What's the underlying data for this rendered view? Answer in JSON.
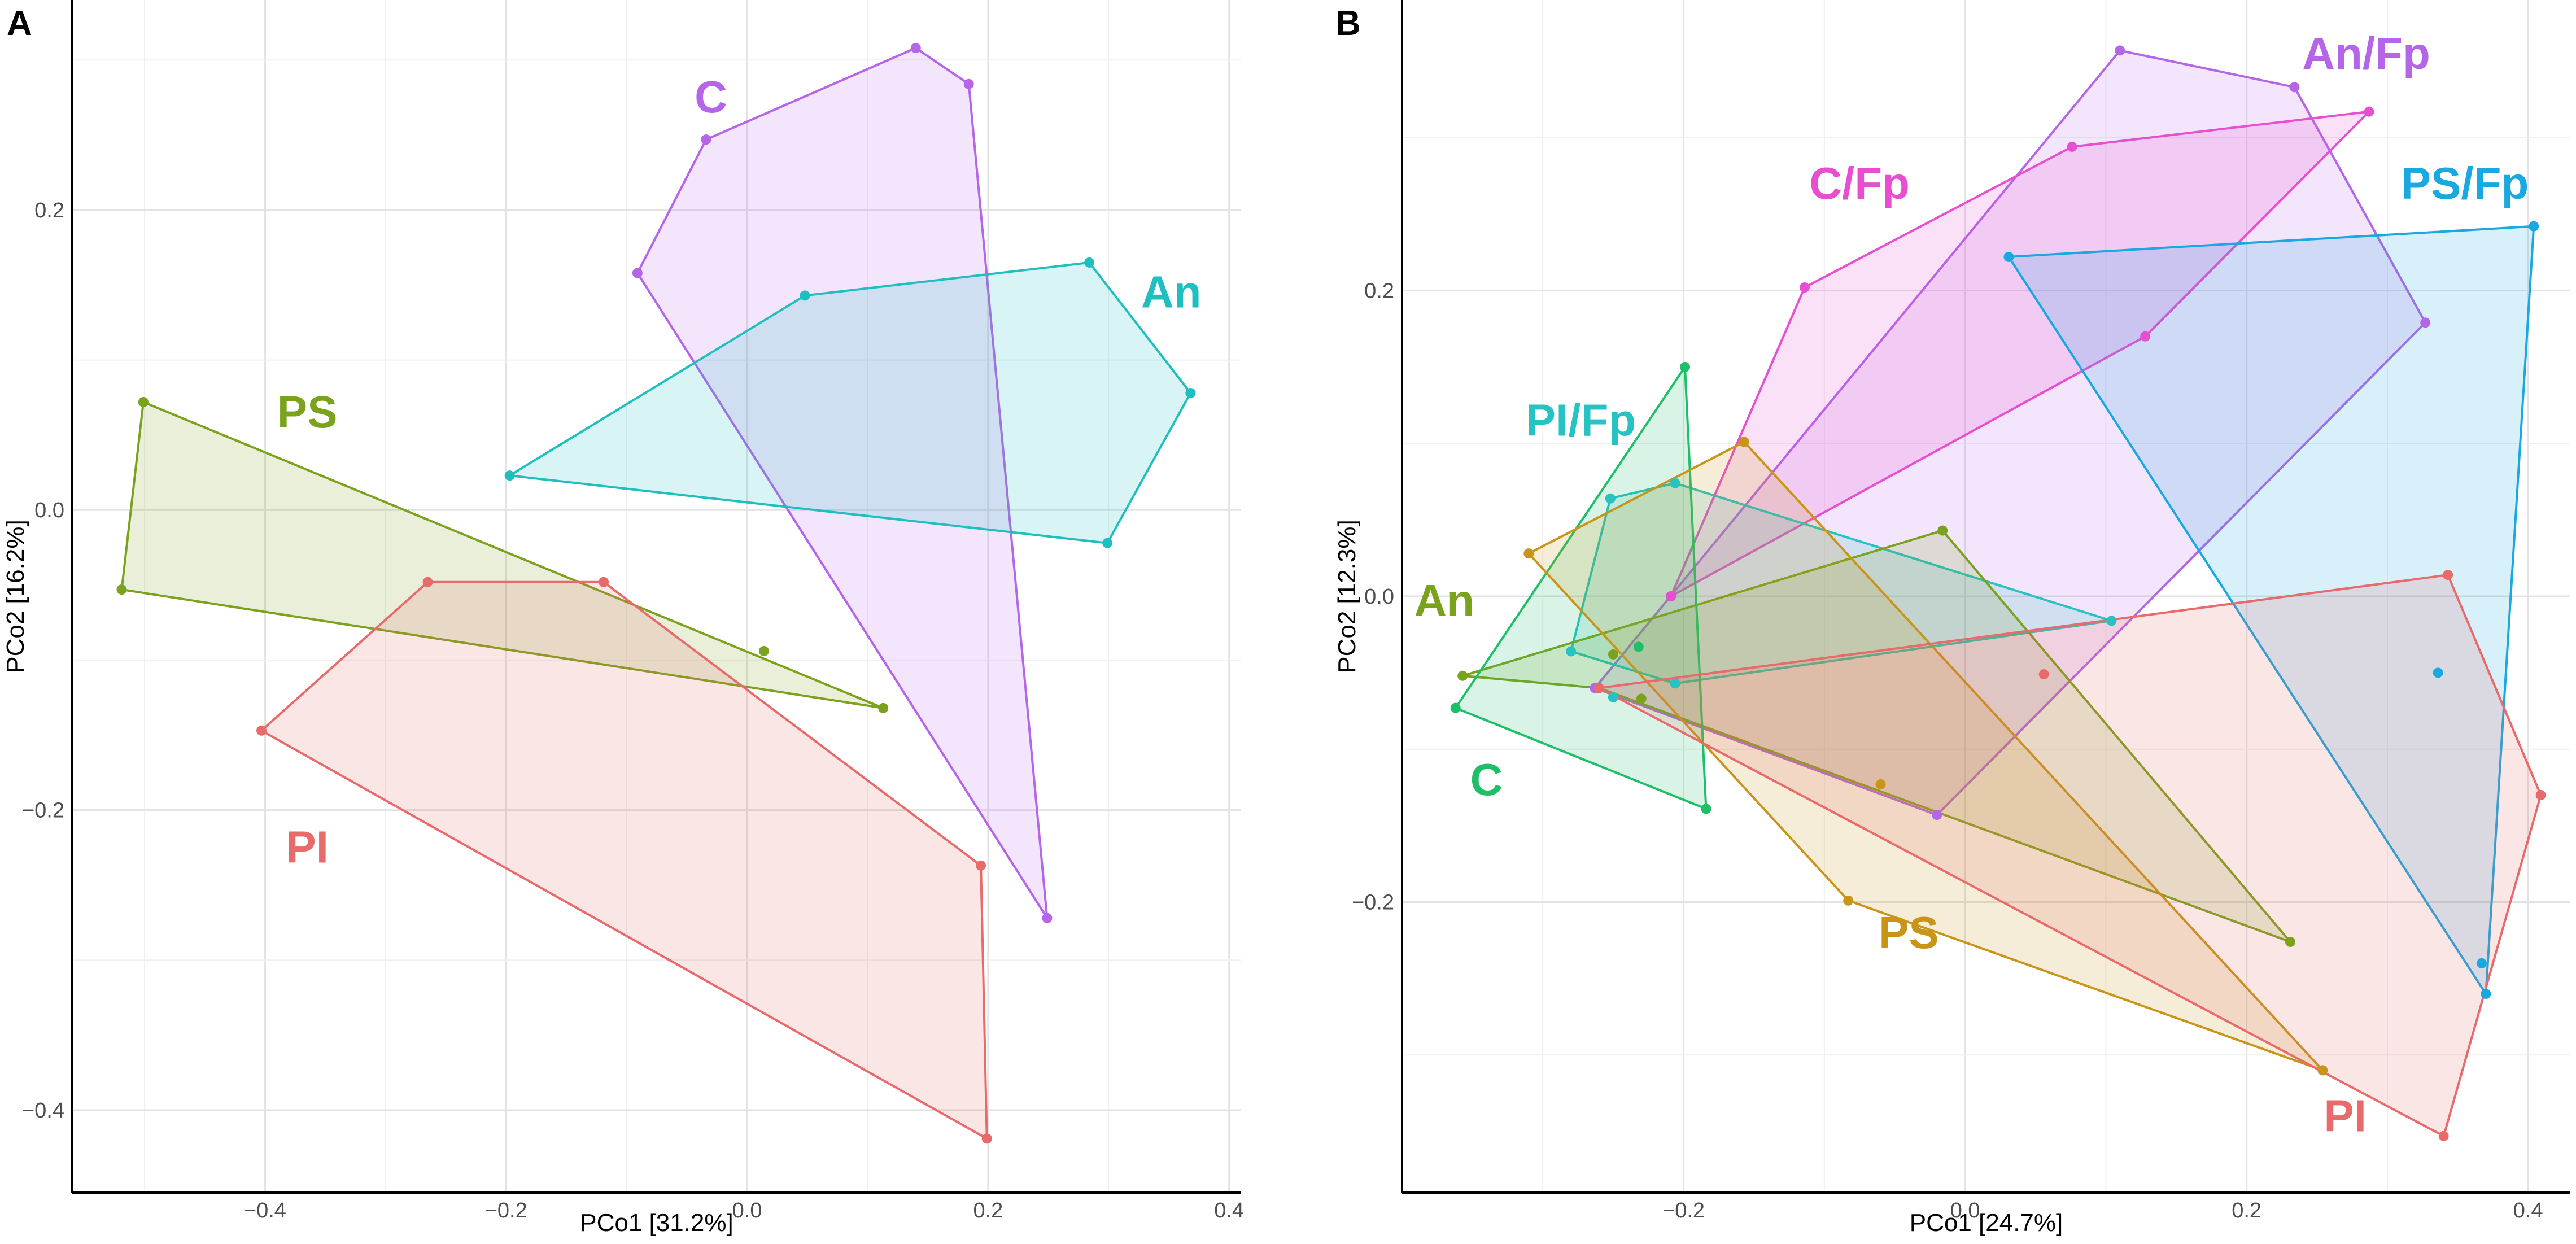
{
  "colors": {
    "C": "#b565e8",
    "An": "#1fbfbf",
    "PS": "#7ba21c",
    "PI": "#e86a6a",
    "C/Fp": "#e84fd0",
    "An/Fp": "#b565e8",
    "PS/Fp": "#1aa8e0",
    "PI/Fp": "#27c2c2",
    "C_B": "#1fbf6a",
    "An_B": "#7ba21c",
    "PS_B": "#c89518",
    "PI_B": "#e86a6a"
  },
  "chart_data": [
    {
      "type": "scatter",
      "panel": "A",
      "xlabel": "PCo1 [31.2%]",
      "ylabel": "PCo2 [16.2%]",
      "xlim": [
        -0.56,
        0.41
      ],
      "ylim": [
        -0.455,
        0.34
      ],
      "xticks": [
        -0.4,
        -0.2,
        0.0,
        0.2,
        0.4
      ],
      "xtick_labels": [
        "−0.4",
        "−0.2",
        "0.0",
        "0.2",
        "0.4"
      ],
      "yticks": [
        -0.4,
        -0.2,
        0.0,
        0.2
      ],
      "ytick_labels": [
        "−0.4",
        "−0.2",
        "0.0",
        "0.2"
      ],
      "groups": [
        {
          "name": "C",
          "label": "C",
          "color_key": "C",
          "label_pos": [
            -0.03,
            0.265
          ],
          "hull": [
            [
              0.14,
              0.308
            ],
            [
              0.184,
              0.284
            ],
            [
              0.249,
              -0.272
            ],
            [
              -0.091,
              0.158
            ],
            [
              -0.034,
              0.247
            ]
          ],
          "points": [
            [
              0.14,
              0.308
            ],
            [
              0.184,
              0.284
            ],
            [
              0.249,
              -0.272
            ],
            [
              -0.091,
              0.158
            ],
            [
              -0.034,
              0.247
            ]
          ]
        },
        {
          "name": "An",
          "label": "An",
          "color_key": "An",
          "label_pos": [
            0.352,
            0.135
          ],
          "hull": [
            [
              0.048,
              0.143
            ],
            [
              0.284,
              0.165
            ],
            [
              0.368,
              0.078
            ],
            [
              0.299,
              -0.022
            ],
            [
              -0.197,
              0.023
            ]
          ],
          "points": [
            [
              0.048,
              0.143
            ],
            [
              0.284,
              0.165
            ],
            [
              0.368,
              0.078
            ],
            [
              0.299,
              -0.022
            ],
            [
              -0.197,
              0.023
            ]
          ]
        },
        {
          "name": "PS",
          "label": "PS",
          "color_key": "PS",
          "label_pos": [
            -0.365,
            0.055
          ],
          "hull": [
            [
              -0.501,
              0.072
            ],
            [
              0.113,
              -0.132
            ],
            [
              -0.519,
              -0.053
            ]
          ],
          "points": [
            [
              -0.501,
              0.072
            ],
            [
              0.113,
              -0.132
            ],
            [
              -0.519,
              -0.053
            ],
            [
              0.014,
              -0.094
            ]
          ]
        },
        {
          "name": "PI",
          "label": "PI",
          "color_key": "PI",
          "label_pos": [
            -0.365,
            -0.235
          ],
          "hull": [
            [
              -0.265,
              -0.048
            ],
            [
              -0.119,
              -0.048
            ],
            [
              0.194,
              -0.237
            ],
            [
              0.199,
              -0.419
            ],
            [
              -0.403,
              -0.147
            ]
          ],
          "points": [
            [
              -0.265,
              -0.048
            ],
            [
              -0.119,
              -0.048
            ],
            [
              0.194,
              -0.237
            ],
            [
              0.199,
              -0.419
            ],
            [
              -0.403,
              -0.147
            ]
          ]
        }
      ]
    },
    {
      "type": "scatter",
      "panel": "B",
      "xlabel": "PCo1 [24.7%]",
      "ylabel": "PCo2 [12.3%]",
      "xlim": [
        -0.4,
        0.43
      ],
      "ylim": [
        -0.39,
        0.39
      ],
      "xticks": [
        -0.2,
        0.0,
        0.2,
        0.4
      ],
      "xtick_labels": [
        "−0.2",
        "0.0",
        "0.2",
        "0.4"
      ],
      "yticks": [
        -0.2,
        0.0,
        0.2
      ],
      "ytick_labels": [
        "−0.2",
        "0.0",
        "0.2"
      ],
      "groups": [
        {
          "name": "An/Fp",
          "label": "An/Fp",
          "color_key": "An/Fp",
          "label_pos": [
            0.285,
            0.345
          ],
          "hull": [
            [
              0.11,
              0.357
            ],
            [
              0.234,
              0.333
            ],
            [
              0.327,
              0.179
            ],
            [
              -0.02,
              -0.143
            ],
            [
              -0.263,
              -0.06
            ]
          ],
          "points": [
            [
              0.11,
              0.357
            ],
            [
              0.234,
              0.333
            ],
            [
              0.327,
              0.179
            ],
            [
              -0.02,
              -0.143
            ],
            [
              -0.263,
              -0.06
            ],
            [
              -0.209,
              0.0
            ]
          ]
        },
        {
          "name": "C/Fp",
          "label": "C/Fp",
          "color_key": "C/Fp",
          "label_pos": [
            -0.075,
            0.26
          ],
          "hull": [
            [
              0.076,
              0.294
            ],
            [
              0.287,
              0.317
            ],
            [
              0.128,
              0.17
            ],
            [
              -0.209,
              0.0
            ],
            [
              -0.114,
              0.202
            ]
          ],
          "points": [
            [
              0.076,
              0.294
            ],
            [
              0.287,
              0.317
            ],
            [
              0.128,
              0.17
            ],
            [
              -0.209,
              0.0
            ],
            [
              -0.114,
              0.202
            ]
          ]
        },
        {
          "name": "PS/Fp",
          "label": "PS/Fp",
          "color_key": "PS/Fp",
          "label_pos": [
            0.355,
            0.26
          ],
          "hull": [
            [
              0.031,
              0.222
            ],
            [
              0.404,
              0.242
            ],
            [
              0.37,
              -0.26
            ]
          ],
          "points": [
            [
              0.031,
              0.222
            ],
            [
              0.404,
              0.242
            ],
            [
              0.37,
              -0.26
            ],
            [
              0.367,
              -0.24
            ],
            [
              0.336,
              -0.05
            ]
          ]
        },
        {
          "name": "PI/Fp",
          "label": "PI/Fp",
          "color_key": "PI/Fp",
          "label_pos": [
            -0.273,
            0.105
          ],
          "hull": [
            [
              -0.252,
              0.064
            ],
            [
              -0.206,
              0.074
            ],
            [
              0.104,
              -0.016
            ],
            [
              -0.206,
              -0.057
            ],
            [
              -0.28,
              -0.036
            ]
          ],
          "points": [
            [
              -0.252,
              0.064
            ],
            [
              -0.206,
              0.074
            ],
            [
              0.104,
              -0.016
            ],
            [
              -0.206,
              -0.057
            ],
            [
              -0.28,
              -0.036
            ],
            [
              -0.25,
              -0.066
            ]
          ]
        },
        {
          "name": "An",
          "label": "An",
          "color_key": "An_B",
          "label_pos": [
            -0.37,
            -0.013
          ],
          "hull": [
            [
              -0.357,
              -0.052
            ],
            [
              -0.016,
              0.043
            ],
            [
              0.231,
              -0.226
            ],
            [
              -0.26,
              -0.06
            ]
          ],
          "points": [
            [
              -0.357,
              -0.052
            ],
            [
              -0.016,
              0.043
            ],
            [
              0.231,
              -0.226
            ],
            [
              -0.26,
              -0.06
            ],
            [
              -0.25,
              -0.038
            ],
            [
              -0.23,
              -0.067
            ]
          ]
        },
        {
          "name": "C",
          "label": "C",
          "color_key": "C_B",
          "label_pos": [
            -0.34,
            -0.13
          ],
          "hull": [
            [
              -0.199,
              0.15
            ],
            [
              -0.184,
              -0.139
            ],
            [
              -0.362,
              -0.073
            ]
          ],
          "points": [
            [
              -0.199,
              0.15
            ],
            [
              -0.184,
              -0.139
            ],
            [
              -0.362,
              -0.073
            ],
            [
              -0.232,
              -0.033
            ]
          ]
        },
        {
          "name": "PS",
          "label": "PS",
          "color_key": "PS_B",
          "label_pos": [
            -0.04,
            -0.23
          ],
          "hull": [
            [
              -0.157,
              0.101
            ],
            [
              0.254,
              -0.31
            ],
            [
              -0.083,
              -0.199
            ],
            [
              -0.31,
              0.028
            ]
          ],
          "points": [
            [
              -0.157,
              0.101
            ],
            [
              0.254,
              -0.31
            ],
            [
              -0.083,
              -0.199
            ],
            [
              -0.31,
              0.028
            ],
            [
              -0.06,
              -0.123
            ]
          ]
        },
        {
          "name": "PI",
          "label": "PI",
          "color_key": "PI_B",
          "label_pos": [
            0.27,
            -0.35
          ],
          "hull": [
            [
              0.343,
              0.014
            ],
            [
              0.409,
              -0.13
            ],
            [
              0.34,
              -0.353
            ],
            [
              -0.26,
              -0.06
            ]
          ],
          "points": [
            [
              0.343,
              0.014
            ],
            [
              0.409,
              -0.13
            ],
            [
              0.34,
              -0.353
            ],
            [
              -0.26,
              -0.06
            ],
            [
              0.056,
              -0.051
            ]
          ]
        }
      ]
    }
  ]
}
